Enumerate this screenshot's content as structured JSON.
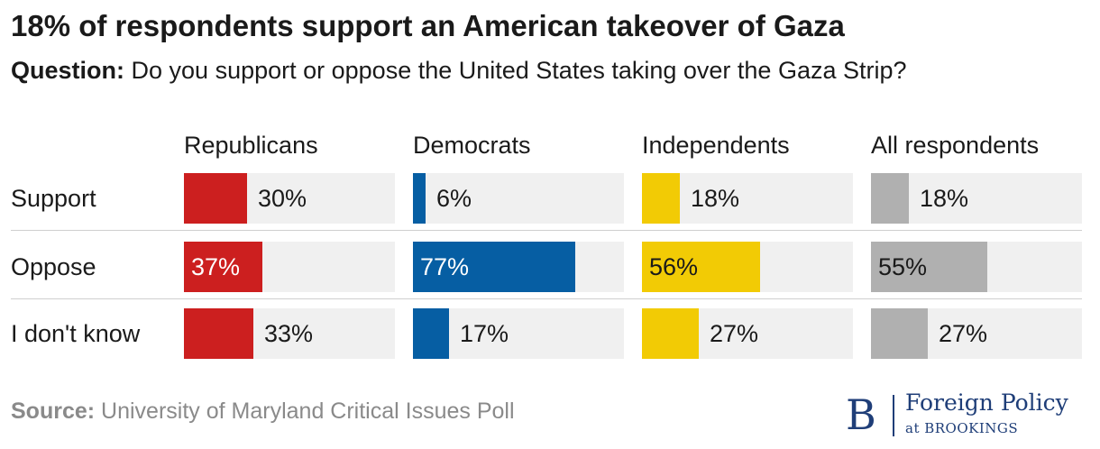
{
  "title": "18% of respondents support an American takeover of Gaza",
  "subtitle": {
    "prefix": "Question:",
    "text": "Do you support or oppose the United States taking over the Gaza Strip?"
  },
  "source": {
    "prefix": "Source:",
    "text": "University of Maryland Critical Issues Poll"
  },
  "logo": {
    "mark": "B",
    "name": "Foreign Policy",
    "sub": "at BROOKINGS"
  },
  "colors": {
    "republicans": "#cc1f1f",
    "democrats": "#065ea3",
    "independents": "#f2cb05",
    "all": "#b0b0b0",
    "track": "#f0f0f0"
  },
  "chart_data": {
    "type": "bar",
    "orientation": "horizontal",
    "categories": [
      "Support",
      "Oppose",
      "I don't know"
    ],
    "series": [
      {
        "name": "Republicans",
        "values": [
          30,
          37,
          33
        ],
        "labels": [
          "30%",
          "37%",
          "33%"
        ]
      },
      {
        "name": "Democrats",
        "values": [
          6,
          77,
          17
        ],
        "labels": [
          "6%",
          "77%",
          "17%"
        ]
      },
      {
        "name": "Independents",
        "values": [
          18,
          56,
          27
        ],
        "labels": [
          "18%",
          "56%",
          "27%"
        ]
      },
      {
        "name": "All respondents",
        "values": [
          18,
          55,
          27
        ],
        "labels": [
          "18%",
          "55%",
          "27%"
        ]
      }
    ],
    "xlim": [
      0,
      100
    ],
    "unit": "%"
  }
}
